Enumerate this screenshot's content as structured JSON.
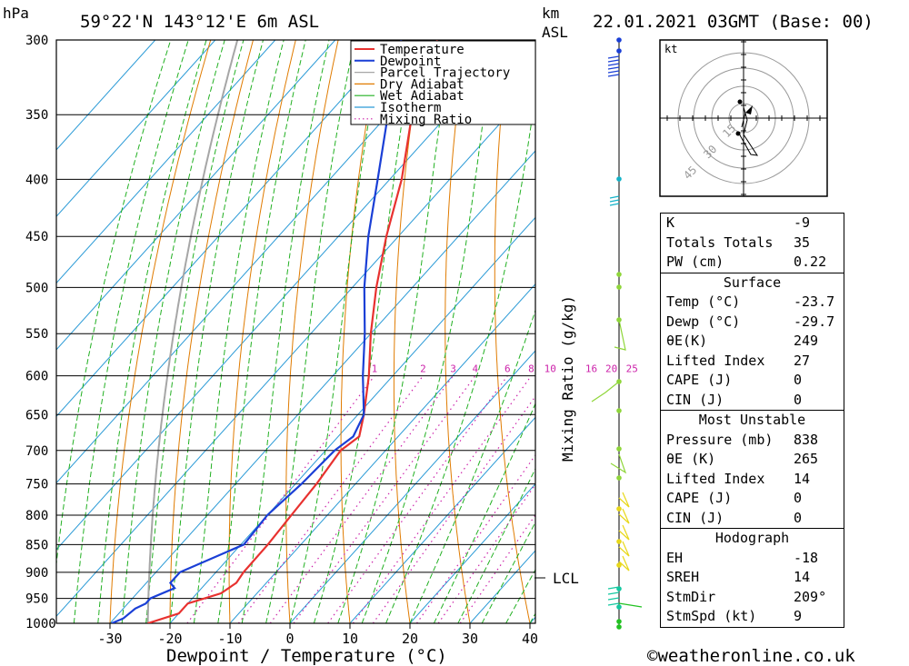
{
  "header": {
    "hpa_unit": "hPa",
    "location": "59°22'N  143°12'E  6m  ASL",
    "km_unit": "km",
    "asl_unit": "ASL",
    "datetime": "22.01.2021  03GMT  (Base: 00)"
  },
  "axes": {
    "xlabel": "Dewpoint / Temperature (°C)",
    "x_ticks": [
      "-30",
      "-20",
      "-10",
      "0",
      "10",
      "20",
      "30",
      "40"
    ],
    "y_ticks": [
      "300",
      "350",
      "400",
      "450",
      "500",
      "550",
      "600",
      "650",
      "700",
      "750",
      "800",
      "850",
      "900",
      "950",
      "1000"
    ],
    "mixing_ratio_label": "Mixing Ratio (g/kg)",
    "mixing_ratio_ticks": [
      "1",
      "2",
      "3",
      "4",
      "6",
      "8",
      "10",
      "16",
      "20",
      "25"
    ],
    "lcl_label": "LCL"
  },
  "legend": [
    "Temperature",
    "Dewpoint",
    "Parcel Trajectory",
    "Dry Adiabat",
    "Wet Adiabat",
    "Isotherm",
    "Mixing Ratio"
  ],
  "colors": {
    "temperature": "#e8312f",
    "dewpoint": "#1a3fd6",
    "parcel": "#a6a6a6",
    "dry_adiabat": "#e07b00",
    "wet_adiabat": "#22b022",
    "isotherm": "#2a9ad6",
    "mixing_ratio": "#cc22aa"
  },
  "chart_data": {
    "type": "line",
    "title": "59°22'N 143°12'E 6m ASL",
    "xlabel": "Dewpoint / Temperature (°C)",
    "ylabel": "hPa",
    "xlim": [
      -35,
      40
    ],
    "ylim": [
      1000,
      300
    ],
    "series": [
      {
        "name": "Temperature",
        "pressure": [
          1000,
          980,
          960,
          940,
          920,
          900,
          850,
          800,
          750,
          700,
          680,
          650,
          600,
          550,
          500,
          450,
          400,
          350,
          300
        ],
        "values": [
          -23.7,
          -20,
          -20,
          -16,
          -15,
          -15.4,
          -15.5,
          -16,
          -16.5,
          -17.5,
          -16.5,
          -19,
          -24,
          -30,
          -36,
          -42,
          -48,
          -56,
          -63
        ]
      },
      {
        "name": "Dewpoint",
        "pressure": [
          1000,
          990,
          970,
          960,
          950,
          930,
          920,
          900,
          850,
          800,
          750,
          700,
          680,
          650,
          600,
          550,
          500,
          450,
          400,
          350,
          300
        ],
        "values": [
          -29.7,
          -28.5,
          -28,
          -27,
          -27,
          -24.5,
          -26,
          -26,
          -19.5,
          -20,
          -19,
          -18.5,
          -17.5,
          -19,
          -25,
          -31,
          -38,
          -45,
          -52,
          -60,
          -69
        ]
      }
    ]
  },
  "hodograph": {
    "unit": "kt",
    "rings": [
      "15",
      "30",
      "45"
    ]
  },
  "indices": {
    "rows": [
      {
        "label": "K",
        "value": "-9"
      },
      {
        "label": "Totals Totals",
        "value": "35"
      },
      {
        "label": "PW (cm)",
        "value": "0.22"
      }
    ],
    "surface": {
      "title": "Surface",
      "rows": [
        {
          "label": "Temp (°C)",
          "value": "-23.7"
        },
        {
          "label": "Dewp (°C)",
          "value": "-29.7"
        },
        {
          "label": "θE(K)",
          "value": "249"
        },
        {
          "label": "Lifted Index",
          "value": "27"
        },
        {
          "label": "CAPE (J)",
          "value": "0"
        },
        {
          "label": "CIN (J)",
          "value": "0"
        }
      ]
    },
    "most_unstable": {
      "title": "Most Unstable",
      "rows": [
        {
          "label": "Pressure (mb)",
          "value": "838"
        },
        {
          "label": "θE (K)",
          "value": "265"
        },
        {
          "label": "Lifted Index",
          "value": "14"
        },
        {
          "label": "CAPE (J)",
          "value": "0"
        },
        {
          "label": "CIN (J)",
          "value": "0"
        }
      ]
    },
    "hodograph_block": {
      "title": "Hodograph",
      "rows": [
        {
          "label": "EH",
          "value": "-18"
        },
        {
          "label": "SREH",
          "value": "14"
        },
        {
          "label": "StmDir",
          "value": "209°"
        },
        {
          "label": "StmSpd (kt)",
          "value": "9"
        }
      ]
    }
  },
  "footer": {
    "copyright": "©weatheronline.co.uk"
  }
}
